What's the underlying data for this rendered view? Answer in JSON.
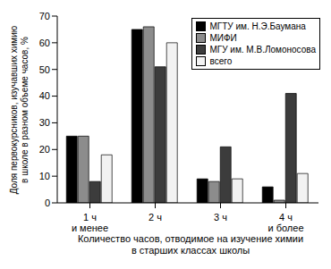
{
  "chart_data": {
    "type": "bar",
    "categories": [
      "1 ч\nи менее",
      "2 ч",
      "3 ч",
      "4 ч\nи более"
    ],
    "series": [
      {
        "name": "МГТУ им. Н.Э.Баумана",
        "color": "#000000",
        "values": [
          25,
          65,
          9,
          6
        ]
      },
      {
        "name": "МИФИ",
        "color": "#8c8c8c",
        "values": [
          25,
          66,
          8,
          1
        ]
      },
      {
        "name": "МГУ им. М.В.Ломоносова",
        "color": "#3c3c3c",
        "values": [
          8,
          51,
          21,
          41
        ]
      },
      {
        "name": "всего",
        "color": "#f2f2f2",
        "values": [
          18,
          60,
          9,
          11
        ]
      }
    ],
    "x_label": "Количество часов, отводимое на изучение химии\nв старших классах школы",
    "y_label": "Доля первокурсников, изучавших химию\nв школе в разном объеме часов, %",
    "ylim": [
      0,
      70
    ],
    "yticks": [
      0,
      10,
      20,
      30,
      40,
      50,
      60,
      70
    ],
    "grid": false,
    "legend": "upper right"
  }
}
